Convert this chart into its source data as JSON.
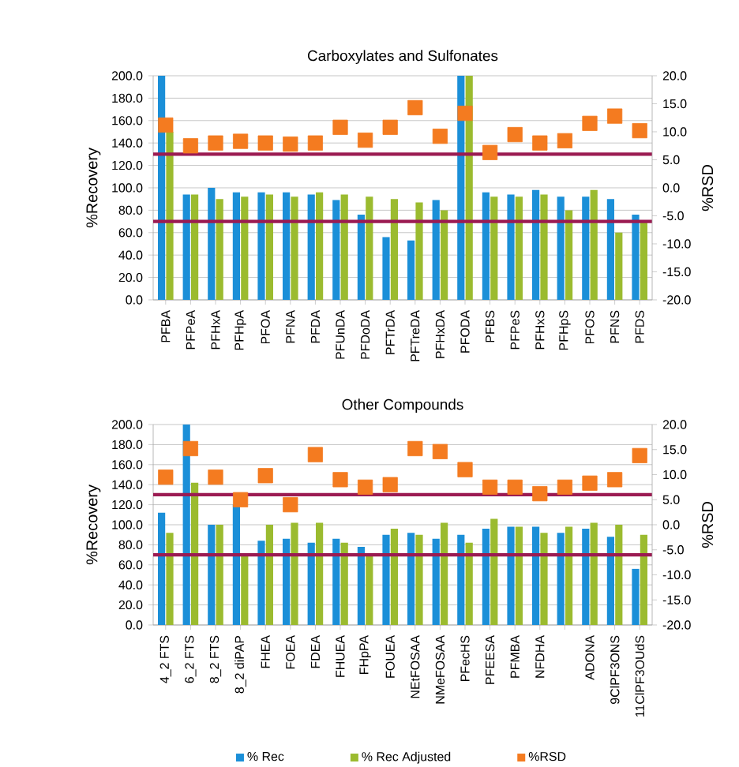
{
  "chart_data": [
    {
      "type": "bar",
      "title": "Carboxylates and Sulfonates",
      "ylabel": "%Recovery",
      "y2label": "%RSD",
      "categories": [
        "PFBA",
        "PFPeA",
        "PFHxA",
        "PFHpA",
        "PFOA",
        "PFNA",
        "PFDA",
        "PFUnDA",
        "PFDoDA",
        "PFTrDA",
        "PFTreDA",
        "PFHxDA",
        "PFODA",
        "PFBS",
        "PFPeS",
        "PFHxS",
        "PFHpS",
        "PFOS",
        "PFNS",
        "PFDS"
      ],
      "series": [
        {
          "color": "#1b8fd8",
          "values": [
            200,
            94,
            100,
            96,
            96,
            96,
            94,
            89,
            76,
            56,
            53,
            89,
            200,
            96,
            94,
            98,
            92,
            92,
            90,
            76
          ]
        },
        {
          "color": "#9bbb2f",
          "values": [
            150,
            94,
            90,
            92,
            94,
            92,
            96,
            94,
            92,
            90,
            87,
            80,
            200,
            92,
            92,
            94,
            80,
            98,
            60,
            70
          ]
        },
        {
          "type": "scatter",
          "axis": "y2",
          "marker": "square",
          "color": "#f47b20",
          "values": [
            11.2,
            7.5,
            8,
            8.3,
            8,
            7.8,
            8,
            10.8,
            8.5,
            10.8,
            14.3,
            9.2,
            13.3,
            6.3,
            9.5,
            8,
            8.4,
            11.5,
            12.8,
            10.2
          ]
        }
      ],
      "ylim": [
        0,
        200
      ],
      "yticks": [
        {
          "value": 0,
          "label": "0.0"
        },
        {
          "value": 20,
          "label": "20.0"
        },
        {
          "value": 40,
          "label": "40.0"
        },
        {
          "value": 60,
          "label": "60.0"
        },
        {
          "value": 80,
          "label": "80.0"
        },
        {
          "value": 100,
          "label": "100.0"
        },
        {
          "value": 120,
          "label": "120.0"
        },
        {
          "value": 140,
          "label": "140.0"
        },
        {
          "value": 160,
          "label": "160.0"
        },
        {
          "value": 180,
          "label": "180.0"
        },
        {
          "value": 200,
          "label": "200.0"
        }
      ],
      "y2lim": [
        -20,
        20
      ],
      "y2ticks": [
        {
          "value": -20,
          "label": "-20.0"
        },
        {
          "value": -15,
          "label": "-15.0"
        },
        {
          "value": -10,
          "label": "-10.0"
        },
        {
          "value": -5,
          "label": "-5.0"
        },
        {
          "value": 0,
          "label": "0.0"
        },
        {
          "value": 5,
          "label": "5.0"
        },
        {
          "value": 10,
          "label": "10.0"
        },
        {
          "value": 15,
          "label": "15.0"
        },
        {
          "value": 20,
          "label": "20.0"
        }
      ],
      "ref_lines": [
        {
          "axis": "y",
          "value": 130,
          "color": "#9b1b52"
        },
        {
          "axis": "y",
          "value": 70,
          "color": "#9b1b52"
        }
      ],
      "grid": "y"
    },
    {
      "type": "bar",
      "title": "Other Compounds",
      "ylabel": "%Recovery",
      "y2label": "%RSD",
      "categories": [
        "4_2 FTS",
        "6_2 FTS",
        "8_2 FTS",
        "8_2 diPAP",
        "FHEA",
        "FOEA",
        "FDEA",
        "FHUEA",
        "FHpPA",
        "FOUEA",
        "NEtFOSAA",
        "NMeFOSAA",
        "PFecHS",
        "PFEESA",
        "PFMBA",
        "NFDHA",
        null,
        "ADONA",
        "9ClPF3ONS",
        "11ClPF3OUdS"
      ],
      "series": [
        {
          "name": "% Rec",
          "color": "#1b8fd8",
          "values": [
            112,
            200,
            100,
            120,
            84,
            86,
            82,
            86,
            78,
            90,
            92,
            86,
            90,
            96,
            98,
            98,
            92,
            96,
            88,
            56
          ]
        },
        {
          "name": "% Rec Adjusted",
          "color": "#9bbb2f",
          "values": [
            92,
            142,
            100,
            70,
            100,
            102,
            102,
            82,
            70,
            96,
            90,
            102,
            82,
            106,
            98,
            92,
            98,
            102,
            100,
            90
          ]
        },
        {
          "name": "%RSD",
          "type": "scatter",
          "axis": "y2",
          "marker": "square",
          "color": "#f47b20",
          "values": [
            9.5,
            15.2,
            9.5,
            5,
            9.8,
            4,
            14,
            9,
            7.5,
            8,
            15.2,
            14.6,
            11,
            7.5,
            7.5,
            6.2,
            7.5,
            8.3,
            9,
            13.8
          ]
        }
      ],
      "ylim": [
        0,
        200
      ],
      "yticks": [
        {
          "value": 0,
          "label": "0.0"
        },
        {
          "value": 20,
          "label": "20.0"
        },
        {
          "value": 40,
          "label": "40.0"
        },
        {
          "value": 60,
          "label": "60.0"
        },
        {
          "value": 80,
          "label": "80.0"
        },
        {
          "value": 100,
          "label": "100.0"
        },
        {
          "value": 120,
          "label": "120.0"
        },
        {
          "value": 140,
          "label": "140.0"
        },
        {
          "value": 160,
          "label": "160.0"
        },
        {
          "value": 180,
          "label": "180.0"
        },
        {
          "value": 200,
          "label": "200.0"
        }
      ],
      "y2lim": [
        -20,
        20
      ],
      "y2ticks": [
        {
          "value": -20,
          "label": "-20.0"
        },
        {
          "value": -15,
          "label": "-15.0"
        },
        {
          "value": -10,
          "label": "-10.0"
        },
        {
          "value": -5,
          "label": "-5.0"
        },
        {
          "value": 0,
          "label": "0.0"
        },
        {
          "value": 5,
          "label": "5.0"
        },
        {
          "value": 10,
          "label": "10.0"
        },
        {
          "value": 15,
          "label": "15.0"
        },
        {
          "value": 20,
          "label": "20.0"
        }
      ],
      "ref_lines": [
        {
          "axis": "y",
          "value": 130,
          "color": "#9b1b52"
        },
        {
          "axis": "y",
          "value": 70,
          "color": "#9b1b52"
        }
      ],
      "grid": "y",
      "legend": "bottom"
    }
  ]
}
